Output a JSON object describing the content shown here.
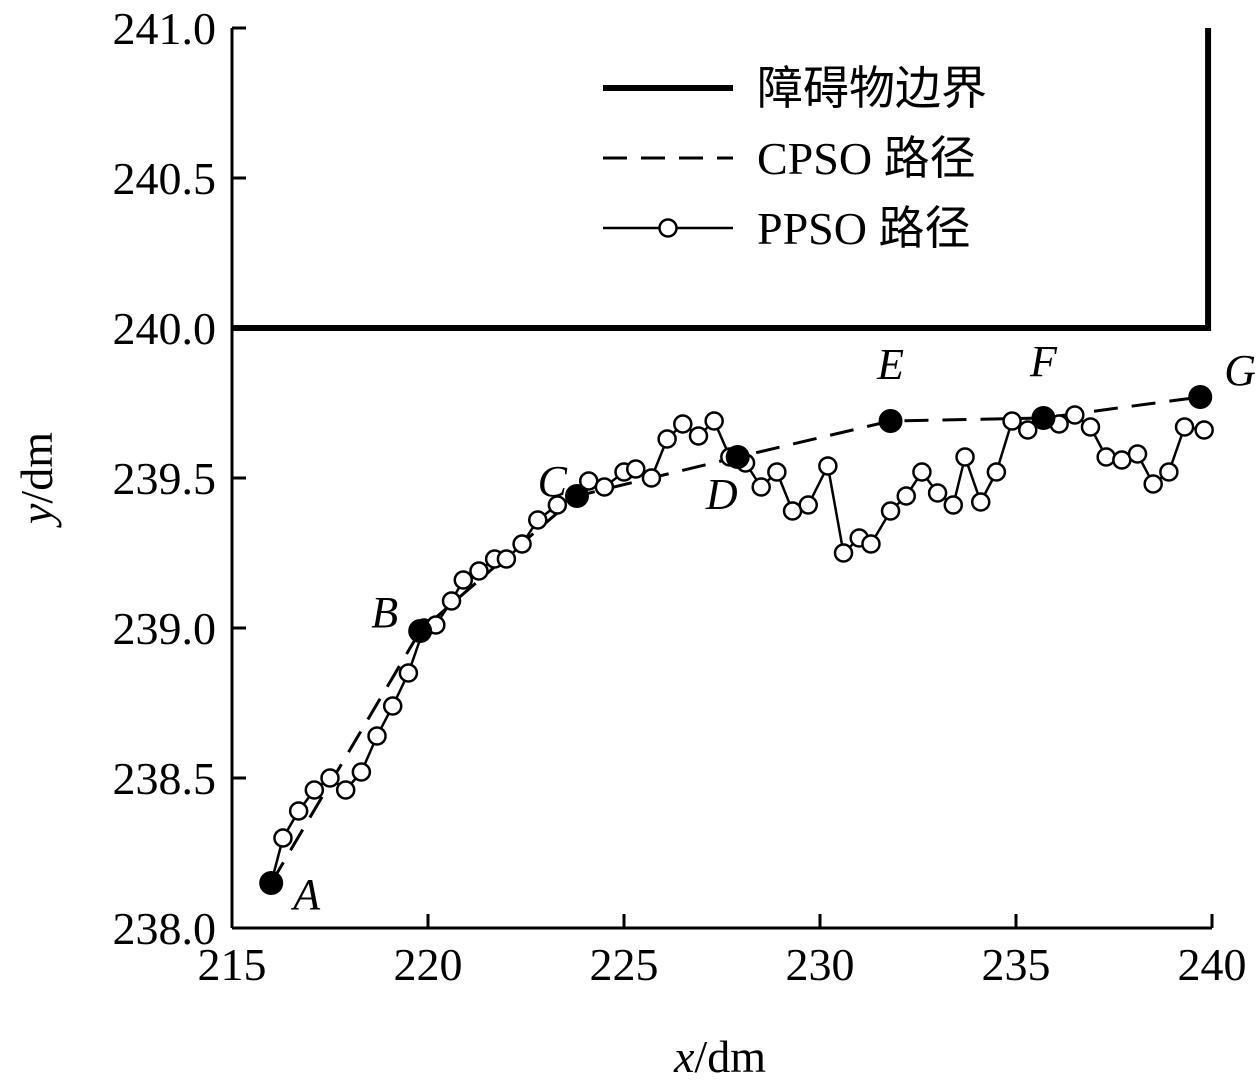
{
  "chart_data": {
    "type": "line",
    "xlabel_var": "x",
    "xlabel_unit": "/dm",
    "ylabel_var": "y",
    "ylabel_unit": "/dm",
    "xlim": [
      215,
      240
    ],
    "ylim": [
      238.0,
      241.0
    ],
    "x_ticks": [
      "215",
      "220",
      "225",
      "230",
      "235",
      "240"
    ],
    "y_ticks": [
      "238.0",
      "238.5",
      "239.0",
      "239.5",
      "240.0",
      "240.5",
      "241.0"
    ],
    "legend": {
      "placement": "top-right",
      "items": [
        {
          "key": "obstacle",
          "label": "障碍物边界"
        },
        {
          "key": "cpso",
          "label": "CPSO 路径"
        },
        {
          "key": "ppso",
          "label": "PPSO 路径"
        }
      ]
    },
    "obstacle": {
      "name": "障碍物边界",
      "x": [
        215,
        239.9,
        239.9
      ],
      "y": [
        240.0,
        240.0,
        241.0
      ]
    },
    "cpso": {
      "name": "CPSO 路径",
      "x": [
        216.0,
        219.8,
        223.8,
        227.9,
        231.8,
        235.7,
        239.7
      ],
      "y": [
        238.15,
        238.99,
        239.44,
        239.57,
        239.69,
        239.7,
        239.77
      ]
    },
    "ppso": {
      "name": "PPSO 路径",
      "x": [
        216.0,
        216.3,
        216.7,
        217.1,
        217.5,
        217.9,
        218.3,
        218.7,
        219.1,
        219.5,
        219.9,
        220.2,
        220.6,
        220.9,
        221.3,
        221.7,
        222.0,
        222.4,
        222.8,
        223.3,
        223.8,
        224.1,
        224.5,
        225.0,
        225.3,
        225.7,
        226.1,
        226.5,
        226.9,
        227.3,
        227.7,
        228.1,
        228.5,
        228.9,
        229.3,
        229.7,
        230.2,
        230.6,
        231.0,
        231.3,
        231.8,
        232.2,
        232.6,
        233.0,
        233.4,
        233.7,
        234.1,
        234.5,
        234.9,
        235.3,
        235.7,
        236.1,
        236.5,
        236.9,
        237.3,
        237.7,
        238.1,
        238.5,
        238.9,
        239.3,
        239.8
      ],
      "y": [
        238.15,
        238.3,
        238.39,
        238.46,
        238.5,
        238.46,
        238.52,
        238.64,
        238.74,
        238.85,
        239.0,
        239.01,
        239.09,
        239.16,
        239.19,
        239.23,
        239.23,
        239.28,
        239.36,
        239.41,
        239.44,
        239.49,
        239.47,
        239.52,
        239.53,
        239.5,
        239.63,
        239.68,
        239.64,
        239.69,
        239.57,
        239.55,
        239.47,
        239.52,
        239.39,
        239.41,
        239.54,
        239.25,
        239.3,
        239.28,
        239.39,
        239.44,
        239.52,
        239.45,
        239.41,
        239.57,
        239.42,
        239.52,
        239.69,
        239.66,
        239.7,
        239.68,
        239.71,
        239.67,
        239.57,
        239.56,
        239.58,
        239.48,
        239.52,
        239.67,
        239.66
      ]
    },
    "key_points": [
      {
        "label": "A",
        "x": 216.0,
        "y": 238.15
      },
      {
        "label": "B",
        "x": 219.8,
        "y": 238.99
      },
      {
        "label": "C",
        "x": 223.8,
        "y": 239.44
      },
      {
        "label": "D",
        "x": 227.9,
        "y": 239.57
      },
      {
        "label": "E",
        "x": 231.8,
        "y": 239.69
      },
      {
        "label": "F",
        "x": 235.7,
        "y": 239.7
      },
      {
        "label": "G",
        "x": 239.7,
        "y": 239.77
      }
    ]
  }
}
